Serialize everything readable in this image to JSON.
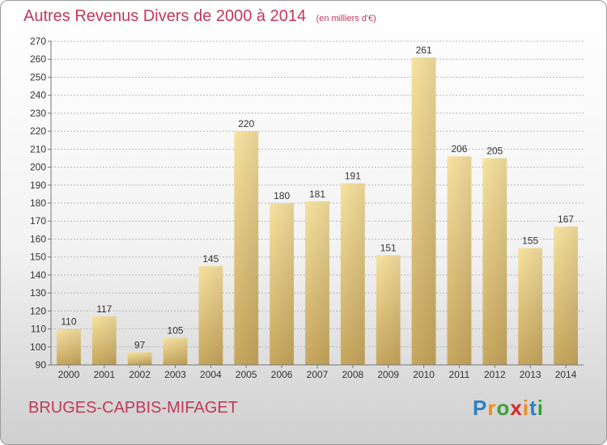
{
  "title": "Autres Revenus Divers de 2000 à 2014",
  "unit_note": "(en milliers d'€)",
  "commune": "BRUGES-CAPBIS-MIFAGET",
  "logo": {
    "text": "Proxiti",
    "letters": [
      {
        "ch": "P",
        "color": "#2f7fc4"
      },
      {
        "ch": "r",
        "color": "#f08a1c"
      },
      {
        "ch": "o",
        "color": "#3aa13a"
      },
      {
        "ch": "x",
        "color": "#d42a2a"
      },
      {
        "ch": "i",
        "color": "#f08a1c"
      },
      {
        "ch": "t",
        "color": "#2f7fc4"
      },
      {
        "ch": "i",
        "color": "#3aa13a"
      }
    ]
  },
  "colors": {
    "title": "#c0395a",
    "bar_light": "#f7e2a0",
    "bar_dark": "#c8a75e",
    "grid": "#b8b8b8"
  },
  "chart_data": {
    "type": "bar",
    "title": "Autres Revenus Divers de 2000 à 2014",
    "xlabel": "",
    "ylabel": "",
    "ylim": [
      90,
      270
    ],
    "ytick_step": 10,
    "grid": true,
    "categories": [
      "2000",
      "2001",
      "2002",
      "2003",
      "2004",
      "2005",
      "2006",
      "2007",
      "2008",
      "2009",
      "2010",
      "2011",
      "2012",
      "2013",
      "2014"
    ],
    "values": [
      110,
      117,
      97,
      105,
      145,
      220,
      180,
      181,
      191,
      151,
      261,
      206,
      205,
      155,
      167
    ],
    "data_labels": true
  }
}
